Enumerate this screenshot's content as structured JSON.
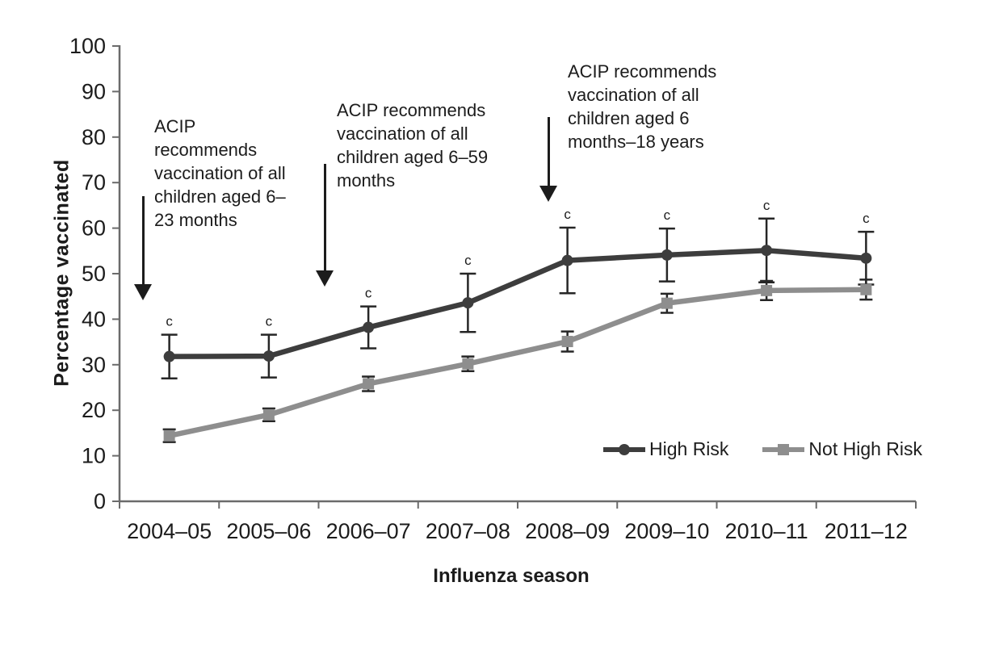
{
  "axes": {
    "y_title": "Percentage vaccinated",
    "x_title": "Influenza season",
    "y_ticks": [
      0,
      10,
      20,
      30,
      40,
      50,
      60,
      70,
      80,
      90,
      100
    ]
  },
  "annotations": [
    {
      "text": "ACIP\nrecommends\nvaccination of all\nchildren aged 6–\n23 months",
      "points_to_season": "2004–05"
    },
    {
      "text": "ACIP recommends\nvaccination of all\nchildren aged 6–59\nmonths",
      "points_to_season": "2006–07"
    },
    {
      "text": "ACIP recommends\nvaccination of all\nchildren aged 6\nmonths–18 years",
      "points_to_season": "2008–09"
    }
  ],
  "significance_marker": "c",
  "colors": {
    "high_risk": "#3d3d3d",
    "not_high_risk": "#8e8e8e",
    "error_bar": "#262626",
    "axis": "#6b6b6b",
    "text": "#1c1c1c"
  },
  "chart_data": {
    "type": "line",
    "title": "",
    "xlabel": "Influenza season",
    "ylabel": "Percentage vaccinated",
    "ylim": [
      0,
      100
    ],
    "y_tick_step": 10,
    "grid": false,
    "legend_position": "inside-lower-right",
    "categories": [
      "2004–05",
      "2005–06",
      "2006–07",
      "2007–08",
      "2008–09",
      "2009–10",
      "2010–11",
      "2011–12"
    ],
    "series": [
      {
        "name": "High Risk",
        "marker": "circle",
        "color": "#3d3d3d",
        "values": [
          31.8,
          31.9,
          38.2,
          43.6,
          52.9,
          54.1,
          55.1,
          53.4
        ],
        "error": [
          4.8,
          4.7,
          4.6,
          6.4,
          7.2,
          5.8,
          7.0,
          5.8
        ],
        "point_labels": [
          "c",
          "c",
          "c",
          "c",
          "c",
          "c",
          "c",
          "c"
        ]
      },
      {
        "name": "Not High Risk",
        "marker": "square",
        "color": "#8e8e8e",
        "values": [
          14.4,
          19.0,
          25.8,
          30.2,
          35.1,
          43.5,
          46.3,
          46.5
        ],
        "error": [
          1.4,
          1.4,
          1.6,
          1.6,
          2.2,
          2.1,
          2.1,
          2.2
        ],
        "point_labels": []
      }
    ]
  }
}
